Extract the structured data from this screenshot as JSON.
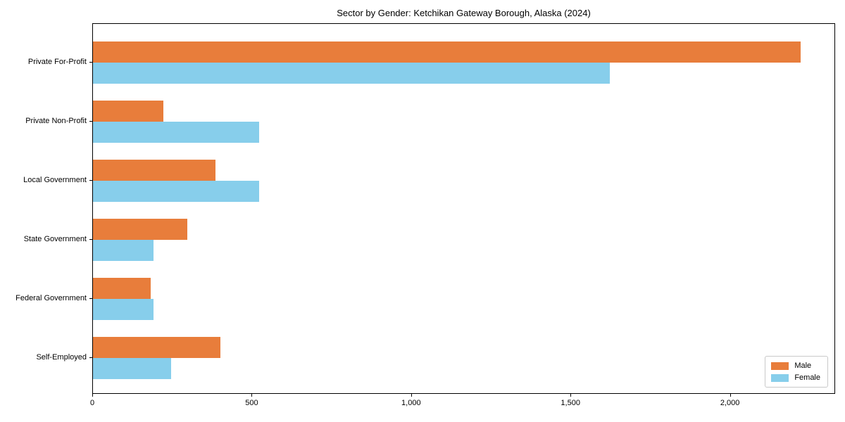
{
  "chart_data": {
    "type": "bar",
    "orientation": "horizontal",
    "title": "Sector by Gender: Ketchikan Gateway Borough, Alaska (2024)",
    "xlabel": "",
    "ylabel": "",
    "categories": [
      "Private For-Profit",
      "Private Non-Profit",
      "Local Government",
      "State Government",
      "Federal Government",
      "Self-Employed"
    ],
    "series": [
      {
        "name": "Male",
        "color": "#e87d3b",
        "values": [
          2220,
          220,
          385,
          295,
          180,
          400
        ]
      },
      {
        "name": "Female",
        "color": "#87ceeb",
        "values": [
          1620,
          520,
          520,
          190,
          190,
          245
        ]
      }
    ],
    "xlim": [
      0,
      2330
    ],
    "xticks": [
      0,
      500,
      1000,
      1500,
      2000
    ],
    "xtick_labels": [
      "0",
      "500",
      "1,000",
      "1,500",
      "2,000"
    ],
    "grid": false,
    "legend_position": "lower right",
    "frame": "full-box",
    "background_color": "#ffffff",
    "text_color": "#000000"
  }
}
